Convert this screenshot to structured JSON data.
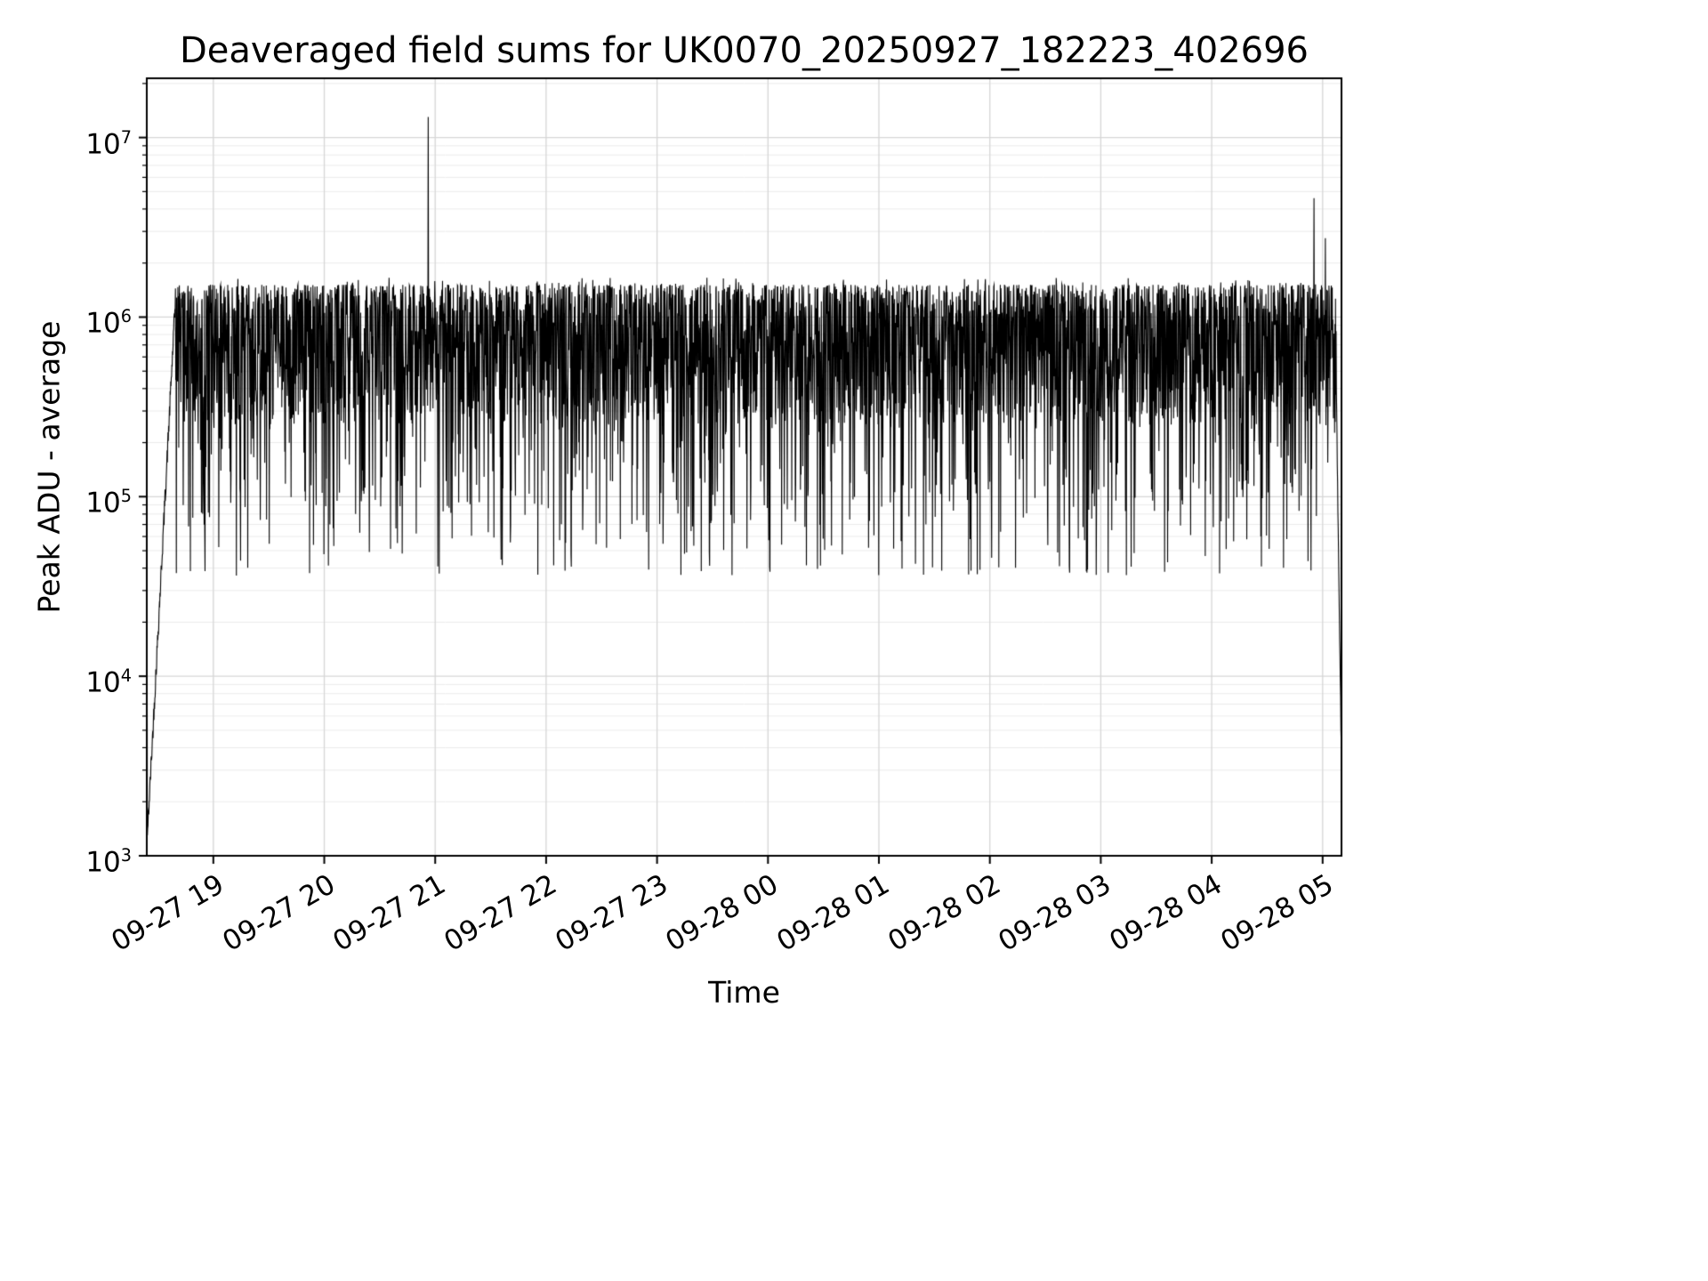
{
  "chart_data": {
    "type": "line",
    "title": "Deaveraged field sums for UK0070_20250927_182223_402696",
    "xlabel": "Time",
    "ylabel": "Peak ADU - average",
    "yscale": "log",
    "ylim": [
      1000,
      21000000
    ],
    "y_tick_exponents": [
      3,
      4,
      5,
      6,
      7
    ],
    "x_tick_labels": [
      "09-27 19",
      "09-27 20",
      "09-27 21",
      "09-27 22",
      "09-27 23",
      "09-28 00",
      "09-28 01",
      "09-28 02",
      "09-28 03",
      "09-28 04",
      "09-28 05"
    ],
    "x_tick_hours": [
      19,
      20,
      21,
      22,
      23,
      24,
      25,
      26,
      27,
      28,
      29
    ],
    "x_start_hour": 18.4,
    "x_end_hour": 29.17,
    "grid": true,
    "legend": false,
    "line_color": "#000000",
    "grid_major_color": "#d6d6d6",
    "grid_minor_color": "#ebebeb",
    "series_model": {
      "n_points": 4000,
      "seed": 42,
      "band_log10_top": 6.18,
      "band_log10_spread": 0.78,
      "dip_probability": 0.22,
      "dip_depth_max_log10": 1.0,
      "floor_log10": 4.56,
      "upper_bump_probability": 0.06,
      "start": {
        "values": [
          1400,
          21000,
          1300
        ],
        "ramp_end_frac": 0.024,
        "ramp_top_log10": 6.1
      },
      "end": {
        "drop_start_frac": 0.9955,
        "final_value": 3000
      },
      "spikes": [
        {
          "frac": 0.2355,
          "value": 13000000
        },
        {
          "frac": 0.977,
          "value": 4600000
        },
        {
          "frac": 0.9865,
          "value": 2750000
        }
      ]
    }
  }
}
